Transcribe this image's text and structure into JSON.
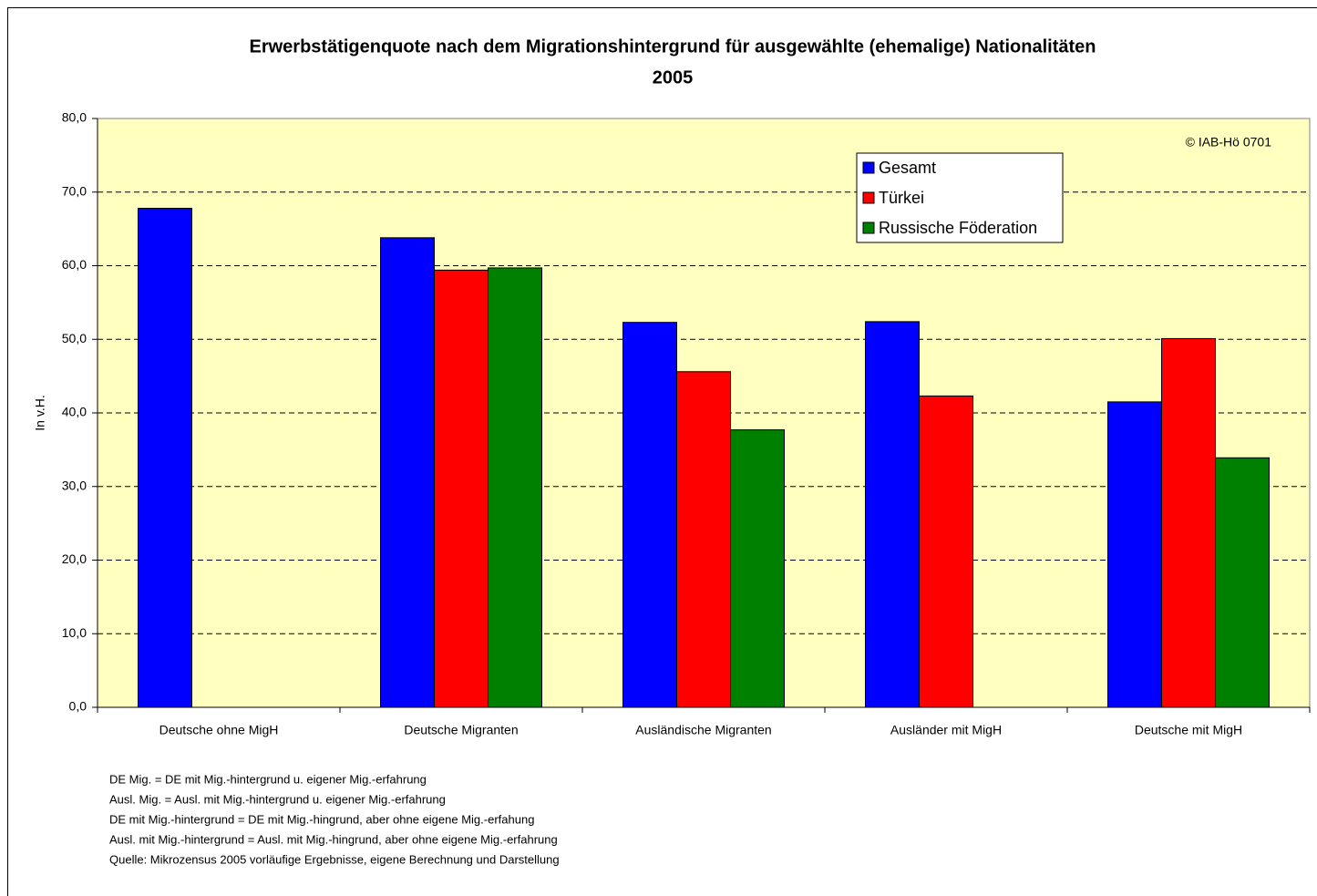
{
  "chart_data": {
    "type": "bar",
    "title": "Erwerbstätigenquote nach dem Migrationshintergrund für ausgewählte (ehemalige) Nationalitäten",
    "subtitle": "2005",
    "ylabel": "In v.H.",
    "categories": [
      "Deutsche ohne MigH",
      "Deutsche Migranten",
      "Ausländische Migranten",
      "Ausländer mit MigH",
      "Deutsche mit MigH"
    ],
    "series": [
      {
        "name": "Gesamt",
        "color": "#0000ff",
        "values": [
          67.8,
          63.8,
          52.3,
          52.4,
          41.5
        ]
      },
      {
        "name": "Türkei",
        "color": "#ff0000",
        "values": [
          null,
          59.4,
          45.6,
          42.3,
          50.1
        ]
      },
      {
        "name": "Russische Föderation",
        "color": "#008000",
        "values": [
          null,
          59.7,
          37.7,
          null,
          33.9
        ]
      }
    ],
    "ylim": [
      0,
      80
    ],
    "yticks": [
      {
        "value": 0,
        "label": "0,0"
      },
      {
        "value": 10,
        "label": "10,0"
      },
      {
        "value": 20,
        "label": "20,0"
      },
      {
        "value": 30,
        "label": "30,0"
      },
      {
        "value": 40,
        "label": "40,0"
      },
      {
        "value": 50,
        "label": "50,0"
      },
      {
        "value": 60,
        "label": "60,0"
      },
      {
        "value": 70,
        "label": "70,0"
      },
      {
        "value": 80,
        "label": "80,0"
      }
    ],
    "grid": true,
    "legend": "top-right",
    "annotations": [
      "© IAB-Hö 0701"
    ],
    "notes": [
      "DE Mig. = DE mit Mig.-hintergrund u. eigener Mig.-erfahrung",
      "Ausl. Mig. = Ausl. mit Mig.-hintergrund u. eigener Mig.-erfahrung",
      "DE mit Mig.-hintergrund = DE mit Mig.-hingrund, aber ohne eigene Mig.-erfahung",
      "Ausl. mit Mig.-hintergrund = Ausl. mit Mig.-hingrund, aber ohne eigene Mig.-erfahrung",
      "Quelle: Mikrozensus 2005 vorläufige Ergebnisse, eigene Berechnung und Darstellung"
    ]
  }
}
